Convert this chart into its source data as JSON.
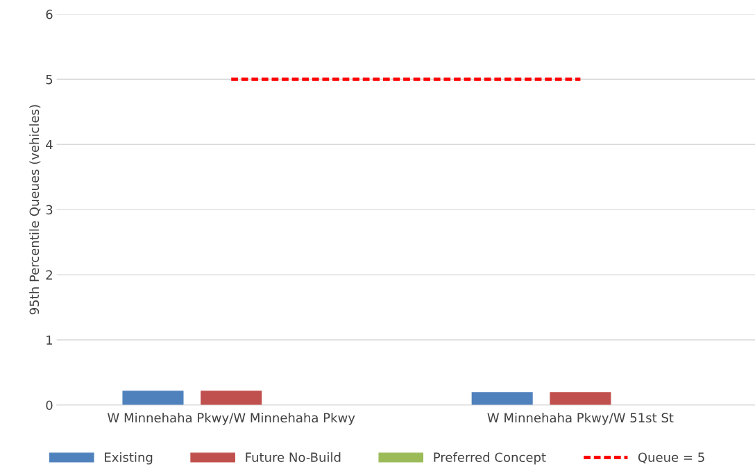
{
  "chart_data": {
    "type": "bar",
    "ylabel": "95th Percentile Queues (vehicles)",
    "categories": [
      "W Minnehaha Pkwy/W Minnehaha Pkwy",
      "W Minnehaha Pkwy/W 51st St"
    ],
    "series": [
      {
        "name": "Existing",
        "color": "#4f81bd",
        "values": [
          0.22,
          0.2
        ]
      },
      {
        "name": "Future No-Build",
        "color": "#c0504d",
        "values": [
          0.22,
          0.2
        ]
      },
      {
        "name": "Preferred Concept",
        "color": "#9bbb59",
        "values": [
          0,
          0
        ]
      },
      {
        "name": "Queue = 5",
        "type": "line",
        "color": "#ff0000",
        "line_style": "dashed",
        "values": [
          5,
          5
        ]
      }
    ],
    "ylim": [
      0,
      6
    ],
    "yticks": [
      0,
      1,
      2,
      3,
      4,
      5,
      6
    ],
    "grid": "y",
    "legend": "bottom"
  }
}
